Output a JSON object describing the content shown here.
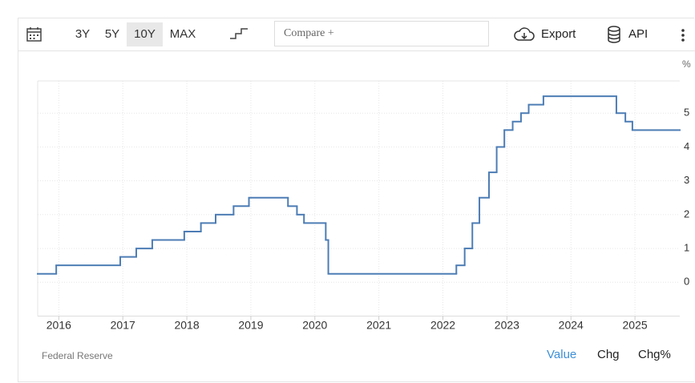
{
  "toolbar": {
    "ranges": [
      "3Y",
      "5Y",
      "10Y",
      "MAX"
    ],
    "compare": "Compare +",
    "export": "Export",
    "api": "API"
  },
  "chart_data": {
    "type": "line",
    "step": "post",
    "y_unit": "%",
    "x": [
      2015.67,
      2015.96,
      2016.96,
      2017.21,
      2017.46,
      2017.96,
      2018.22,
      2018.45,
      2018.73,
      2018.97,
      2019.58,
      2019.72,
      2019.83,
      2020.17,
      2020.21,
      2022.21,
      2022.34,
      2022.46,
      2022.57,
      2022.72,
      2022.84,
      2022.96,
      2023.09,
      2023.22,
      2023.34,
      2023.57,
      2024.71,
      2024.85,
      2024.96
    ],
    "series": [
      {
        "color": "#4d7db5",
        "values": [
          0.25,
          0.5,
          0.75,
          1.0,
          1.25,
          1.5,
          1.75,
          2.0,
          2.25,
          2.5,
          2.25,
          2.0,
          1.75,
          1.25,
          0.25,
          0.5,
          1.0,
          1.75,
          2.5,
          3.25,
          4.0,
          4.5,
          4.75,
          5.0,
          5.25,
          5.5,
          5.0,
          4.75,
          4.5
        ]
      }
    ],
    "xlim": [
      2015.67,
      2025.7
    ],
    "xticks": [
      2016,
      2017,
      2018,
      2019,
      2020,
      2021,
      2022,
      2023,
      2024,
      2025
    ],
    "ylim": [
      -1,
      6
    ],
    "yticks": [
      0,
      1,
      2,
      3,
      4,
      5
    ],
    "grid": true
  },
  "footer": {
    "source": "Federal Reserve",
    "tabs": [
      "Value",
      "Chg",
      "Chg%"
    ]
  }
}
